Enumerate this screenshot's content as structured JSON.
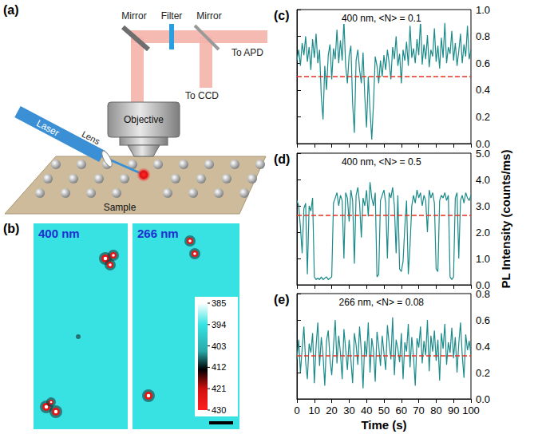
{
  "figure": {
    "a": {
      "letter": "(a)",
      "labels": {
        "mirror_left": "Mirror",
        "filter": "Filter",
        "mirror_right": "Mirror",
        "apd": "To APD",
        "ccd": "To CCD",
        "objective": "Objective",
        "laser": "Laser",
        "lens": "Lens",
        "sample": "Sample"
      }
    },
    "b": {
      "letter": "(b)",
      "images": [
        "400 nm",
        "266 nm"
      ],
      "colorbar": {
        "range": [
          385,
          430
        ],
        "ticks": [
          385,
          394,
          403,
          412,
          421,
          430
        ]
      }
    }
  },
  "chart_data": [
    {
      "letter": "(c)",
      "type": "line",
      "title": "400 nm, <N> = 0.1",
      "color": "#1b8a8a",
      "threshold": 0.5,
      "grid": false,
      "tick_labels": "y",
      "x": [
        0,
        1,
        2,
        3,
        4,
        5,
        6,
        7,
        8,
        9,
        10,
        11,
        12,
        13,
        14,
        15,
        16,
        17,
        18,
        19,
        20,
        21,
        22,
        23,
        24,
        25,
        26,
        27,
        28,
        29,
        30,
        31,
        32,
        33,
        34,
        35,
        36,
        37,
        38,
        39,
        40,
        41,
        42,
        43,
        44,
        45,
        46,
        47,
        48,
        49,
        50,
        51,
        52,
        53,
        54,
        55,
        56,
        57,
        58,
        59,
        60,
        61,
        62,
        63,
        64,
        65,
        66,
        67,
        68,
        69,
        70,
        71,
        72,
        73,
        74,
        75,
        76,
        77,
        78,
        79,
        80,
        81,
        82,
        83,
        84,
        85,
        86,
        87,
        88,
        89,
        90,
        91,
        92,
        93,
        94,
        95,
        96,
        97,
        98,
        99,
        100
      ],
      "values": [
        0.62,
        0.7,
        0.58,
        0.75,
        0.66,
        0.8,
        0.61,
        0.72,
        0.55,
        0.78,
        0.64,
        0.82,
        0.6,
        0.7,
        0.35,
        0.18,
        0.58,
        0.4,
        0.66,
        0.74,
        0.48,
        0.71,
        0.63,
        0.85,
        0.6,
        0.77,
        0.62,
        0.92,
        0.58,
        0.45,
        0.66,
        0.73,
        0.3,
        0.08,
        0.62,
        0.7,
        0.55,
        0.45,
        0.68,
        0.35,
        0.12,
        0.5,
        0.25,
        0.03,
        0.3,
        0.65,
        0.58,
        0.45,
        0.62,
        0.5,
        0.66,
        0.55,
        0.7,
        0.6,
        0.48,
        0.72,
        0.63,
        0.8,
        0.58,
        0.67,
        0.45,
        0.7,
        0.62,
        0.76,
        0.58,
        0.88,
        0.64,
        0.71,
        0.6,
        0.78,
        0.66,
        0.92,
        0.59,
        0.74,
        0.63,
        0.81,
        0.57,
        0.7,
        0.65,
        0.86,
        0.61,
        0.73,
        0.56,
        0.79,
        0.64,
        0.9,
        0.6,
        0.72,
        0.67,
        0.84,
        0.62,
        0.75,
        0.58,
        0.69,
        0.82,
        0.6,
        0.74,
        0.65,
        0.88,
        0.63,
        0.7
      ],
      "xlim": [
        0,
        100
      ],
      "xticks": [
        0,
        10,
        20,
        30,
        40,
        50,
        60,
        70,
        80,
        90,
        100
      ],
      "ylim": [
        0,
        1
      ],
      "yticks": [
        {
          "value": 0,
          "label": "0.0"
        },
        0.2,
        0.4,
        0.6,
        0.8,
        {
          "value": 1,
          "label": "1.0"
        }
      ]
    },
    {
      "letter": "(d)",
      "type": "line",
      "title": "400 nm, <N> = 0.5",
      "color": "#1b8a8a",
      "threshold": 2.65,
      "grid": false,
      "tick_labels": "y",
      "ylabel": "PL Intensity (counts/ms)",
      "x": [
        0,
        1,
        2,
        3,
        4,
        5,
        6,
        7,
        8,
        9,
        10,
        11,
        12,
        13,
        14,
        15,
        16,
        17,
        18,
        19,
        20,
        21,
        22,
        23,
        24,
        25,
        26,
        27,
        28,
        29,
        30,
        31,
        32,
        33,
        34,
        35,
        36,
        37,
        38,
        39,
        40,
        41,
        42,
        43,
        44,
        45,
        46,
        47,
        48,
        49,
        50,
        51,
        52,
        53,
        54,
        55,
        56,
        57,
        58,
        59,
        60,
        61,
        62,
        63,
        64,
        65,
        66,
        67,
        68,
        69,
        70,
        71,
        72,
        73,
        74,
        75,
        76,
        77,
        78,
        79,
        80,
        81,
        82,
        83,
        84,
        85,
        86,
        87,
        88,
        89,
        90,
        91,
        92,
        93,
        94,
        95,
        96,
        97,
        98,
        99,
        100
      ],
      "values": [
        3.2,
        3.0,
        2.2,
        1.2,
        2.9,
        3.1,
        0.4,
        3.0,
        2.8,
        3.3,
        0.3,
        0.2,
        0.25,
        0.2,
        0.3,
        0.2,
        0.25,
        0.3,
        0.2,
        0.25,
        0.3,
        3.1,
        3.3,
        3.5,
        3.0,
        3.4,
        3.2,
        1.0,
        3.5,
        3.3,
        2.4,
        3.6,
        3.2,
        0.8,
        3.4,
        3.7,
        3.1,
        1.8,
        3.3,
        3.0,
        3.6,
        2.6,
        3.9,
        3.3,
        3.0,
        3.5,
        0.3,
        0.4,
        3.2,
        3.4,
        3.6,
        3.1,
        1.0,
        3.5,
        3.3,
        3.7,
        3.0,
        1.2,
        3.4,
        0.6,
        0.5,
        0.9,
        2.2,
        3.2,
        0.4,
        1.5,
        3.0,
        3.4,
        3.1,
        3.6,
        3.3,
        3.5,
        3.0,
        3.4,
        3.2,
        2.0,
        3.6,
        3.3,
        3.5,
        3.1,
        0.6,
        0.5,
        3.2,
        3.4,
        3.3,
        3.5,
        3.2,
        3.4,
        0.3,
        0.2,
        0.3,
        3.3,
        3.5,
        1.0,
        3.2,
        3.4,
        3.1,
        3.5,
        3.3,
        3.2,
        3.4
      ],
      "xlim": [
        0,
        100
      ],
      "xticks": [
        0,
        10,
        20,
        30,
        40,
        50,
        60,
        70,
        80,
        90,
        100
      ],
      "ylim": [
        0,
        5
      ],
      "yticks": [
        {
          "value": 0,
          "label": "0.0"
        },
        {
          "value": 1,
          "label": "1.0"
        },
        {
          "value": 2,
          "label": "2.0"
        },
        {
          "value": 3,
          "label": "3.0"
        },
        {
          "value": 4,
          "label": "4.0"
        },
        {
          "value": 5,
          "label": "5.0"
        }
      ]
    },
    {
      "letter": "(e)",
      "type": "line",
      "title": "266 nm, <N> = 0.08",
      "color": "#1b8a8a",
      "threshold": 0.33,
      "grid": false,
      "xlabel": "Time (s)",
      "x": [
        0,
        1,
        2,
        3,
        4,
        5,
        6,
        7,
        8,
        9,
        10,
        11,
        12,
        13,
        14,
        15,
        16,
        17,
        18,
        19,
        20,
        21,
        22,
        23,
        24,
        25,
        26,
        27,
        28,
        29,
        30,
        31,
        32,
        33,
        34,
        35,
        36,
        37,
        38,
        39,
        40,
        41,
        42,
        43,
        44,
        45,
        46,
        47,
        48,
        49,
        50,
        51,
        52,
        53,
        54,
        55,
        56,
        57,
        58,
        59,
        60,
        61,
        62,
        63,
        64,
        65,
        66,
        67,
        68,
        69,
        70,
        71,
        72,
        73,
        74,
        75,
        76,
        77,
        78,
        79,
        80,
        81,
        82,
        83,
        84,
        85,
        86,
        87,
        88,
        89,
        90,
        91,
        92,
        93,
        94,
        95,
        96,
        97,
        98,
        99,
        100
      ],
      "values": [
        0.3,
        0.45,
        0.2,
        0.38,
        0.55,
        0.28,
        0.15,
        0.42,
        0.35,
        0.5,
        0.12,
        0.4,
        0.58,
        0.25,
        0.47,
        0.33,
        0.1,
        0.44,
        0.52,
        0.3,
        0.18,
        0.4,
        0.6,
        0.27,
        0.48,
        0.35,
        0.15,
        0.53,
        0.38,
        0.22,
        0.45,
        0.3,
        0.12,
        0.5,
        0.41,
        0.26,
        0.55,
        0.36,
        0.08,
        0.44,
        0.32,
        0.58,
        0.2,
        0.46,
        0.37,
        0.13,
        0.51,
        0.4,
        0.25,
        0.48,
        0.35,
        0.22,
        0.56,
        0.42,
        0.3,
        0.62,
        0.18,
        0.45,
        0.38,
        0.28,
        0.5,
        0.15,
        0.43,
        0.36,
        0.57,
        0.24,
        0.47,
        0.32,
        0.1,
        0.46,
        0.39,
        0.55,
        0.27,
        0.44,
        0.33,
        0.6,
        0.21,
        0.48,
        0.36,
        0.52,
        0.29,
        0.45,
        0.14,
        0.5,
        0.38,
        0.57,
        0.26,
        0.43,
        0.35,
        0.54,
        0.31,
        0.47,
        0.2,
        0.42,
        0.58,
        0.33,
        0.16,
        0.49,
        0.37,
        0.44,
        0.34
      ],
      "xlim": [
        0,
        100
      ],
      "xticks": [
        0,
        10,
        20,
        30,
        40,
        50,
        60,
        70,
        80,
        90,
        100
      ],
      "ylim": [
        0,
        0.8
      ],
      "yticks": [
        {
          "value": 0,
          "label": "0.0"
        },
        0.2,
        0.4,
        0.6,
        0.8
      ]
    }
  ]
}
